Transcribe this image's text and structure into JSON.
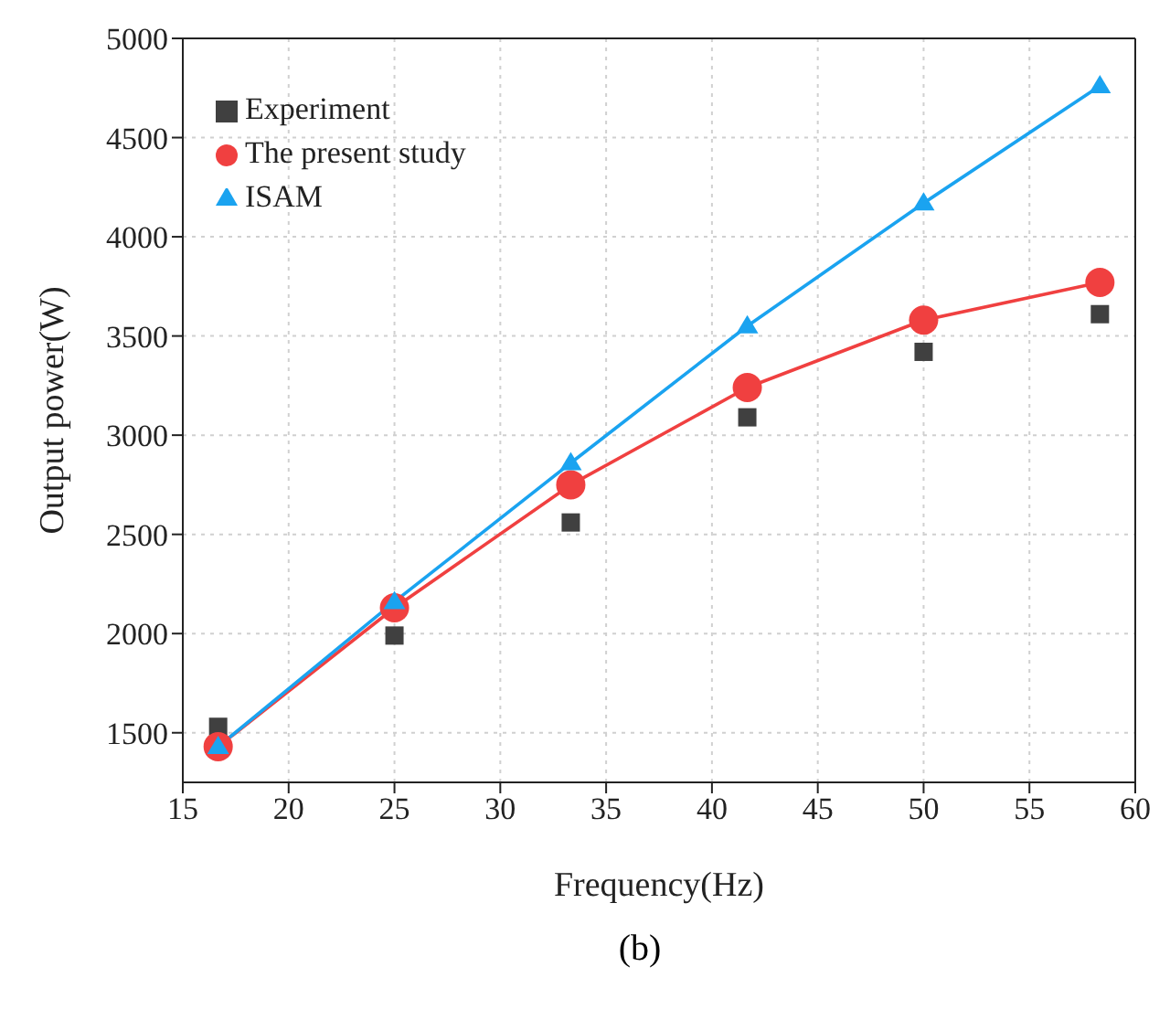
{
  "chart_data": {
    "type": "line",
    "xlabel": "Frequency(Hz)",
    "ylabel": "Output power(W)",
    "annotations": [
      "(b)"
    ],
    "x": [
      16.67,
      25,
      33.33,
      41.67,
      50,
      58.33
    ],
    "series": [
      {
        "name": "Experiment",
        "type": "scatter",
        "color": "#404040",
        "marker": "square",
        "values": [
          1530,
          1990,
          2560,
          3090,
          3420,
          3610
        ]
      },
      {
        "name": "The present study",
        "color": "#f04040",
        "marker": "circle",
        "values": [
          1430,
          2130,
          2750,
          3240,
          3580,
          3770
        ]
      },
      {
        "name": "ISAM",
        "color": "#1aa3f0",
        "marker": "triangle",
        "values": [
          1430,
          2160,
          2860,
          3550,
          4170,
          4760
        ]
      }
    ],
    "xlim": [
      15,
      60
    ],
    "xticks": [
      15,
      20,
      25,
      30,
      35,
      40,
      45,
      50,
      55,
      60
    ],
    "ylim": [
      1250,
      5000
    ],
    "yticks": [
      1500,
      2000,
      2500,
      3000,
      3500,
      4000,
      4500,
      5000
    ],
    "grid": true,
    "legend": "top left",
    "line_style": "solid"
  }
}
